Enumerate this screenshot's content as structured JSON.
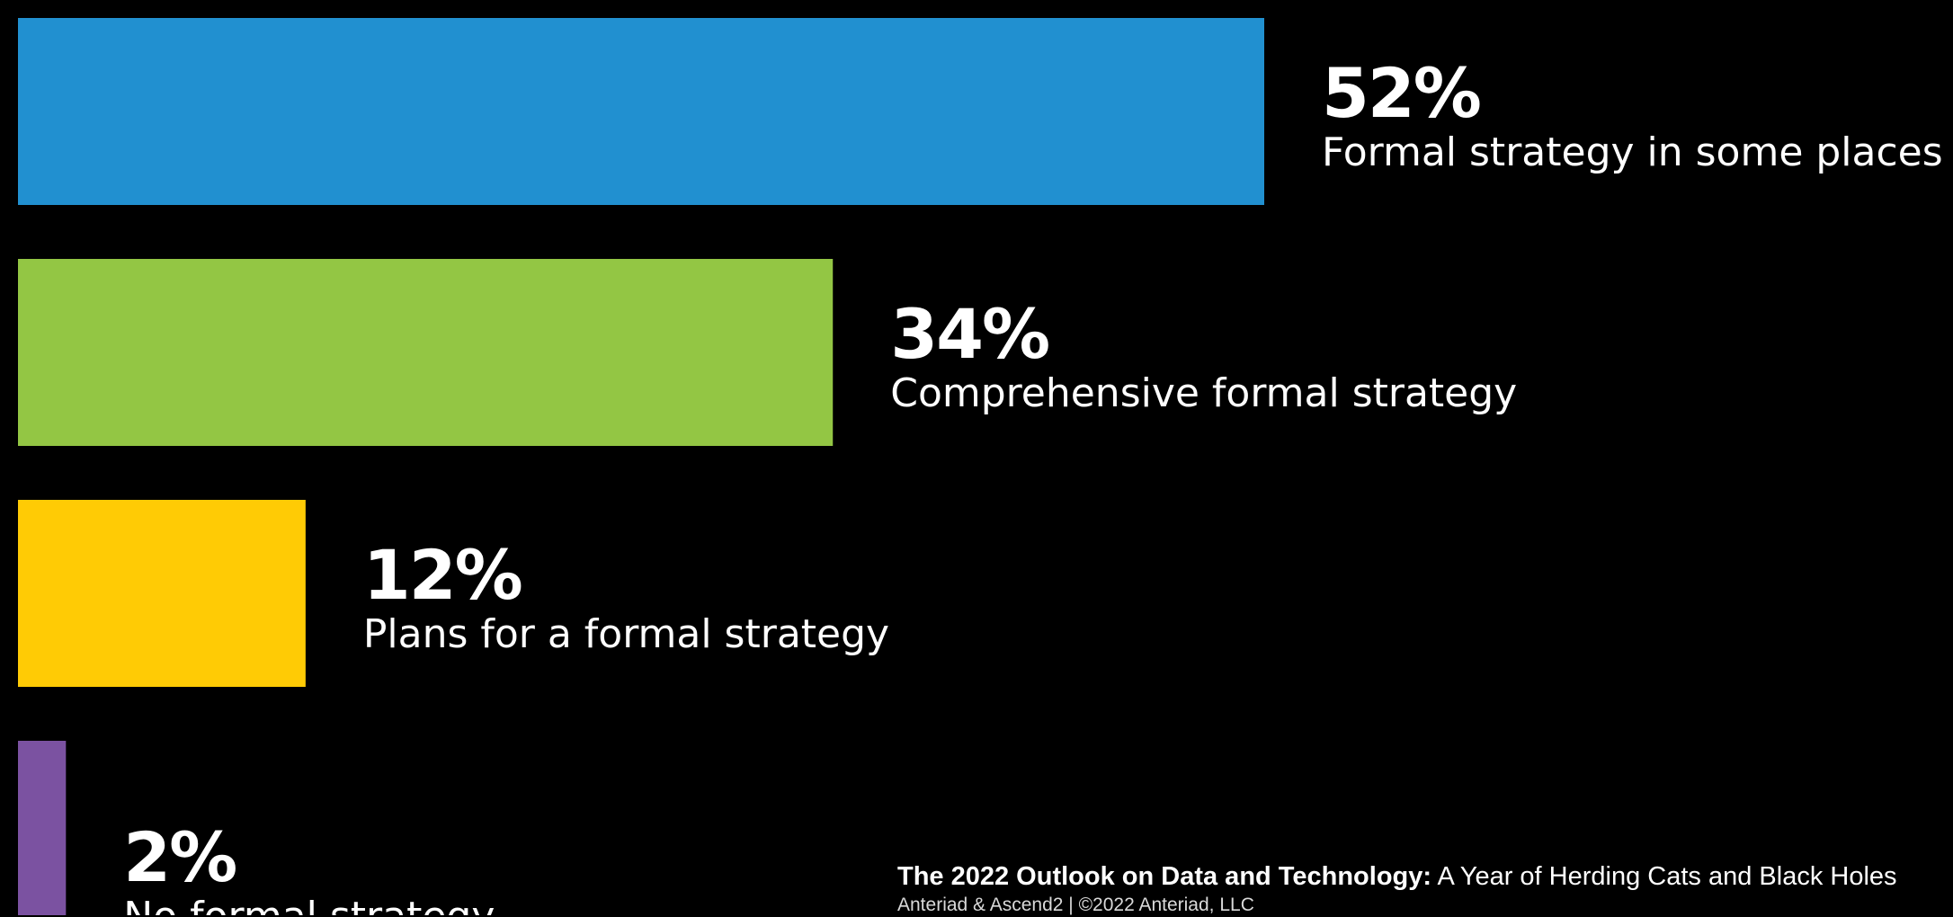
{
  "chart_data": {
    "type": "bar",
    "orientation": "horizontal",
    "title": "",
    "xlabel": "",
    "ylabel": "",
    "xlim": [
      0,
      52
    ],
    "grid": false,
    "categories": [
      "Formal strategy in some places",
      "Comprehensive formal strategy",
      "Plans for a formal strategy",
      "No formal strategy"
    ],
    "values": [
      52,
      34,
      12,
      2
    ],
    "value_labels": [
      "52%",
      "34%",
      "12%",
      "2%"
    ],
    "colors": [
      "#2190d0",
      "#93c644",
      "#ffcb05",
      "#7b52a1"
    ]
  },
  "footer": {
    "report_title": "The 2022 Outlook on Data and Technology:",
    "report_subtitle": " A Year of Herding Cats and Black Holes",
    "credit": "Anteriad & Ascend2 | ©2022 Anteriad, LLC"
  }
}
